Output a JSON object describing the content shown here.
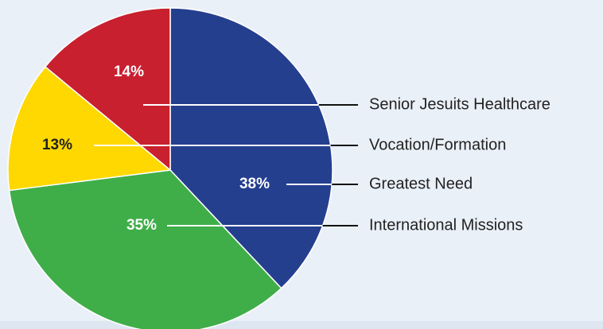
{
  "chart_data": {
    "type": "pie",
    "categories": [
      "Greatest Need",
      "International Missions",
      "Vocation/Formation",
      "Senior Jesuits Healthcare"
    ],
    "values": [
      38,
      35,
      13,
      14
    ],
    "value_labels": [
      "38%",
      "35%",
      "13%",
      "14%"
    ],
    "colors": [
      "#253f8f",
      "#3fae49",
      "#fed800",
      "#c8202f"
    ]
  }
}
